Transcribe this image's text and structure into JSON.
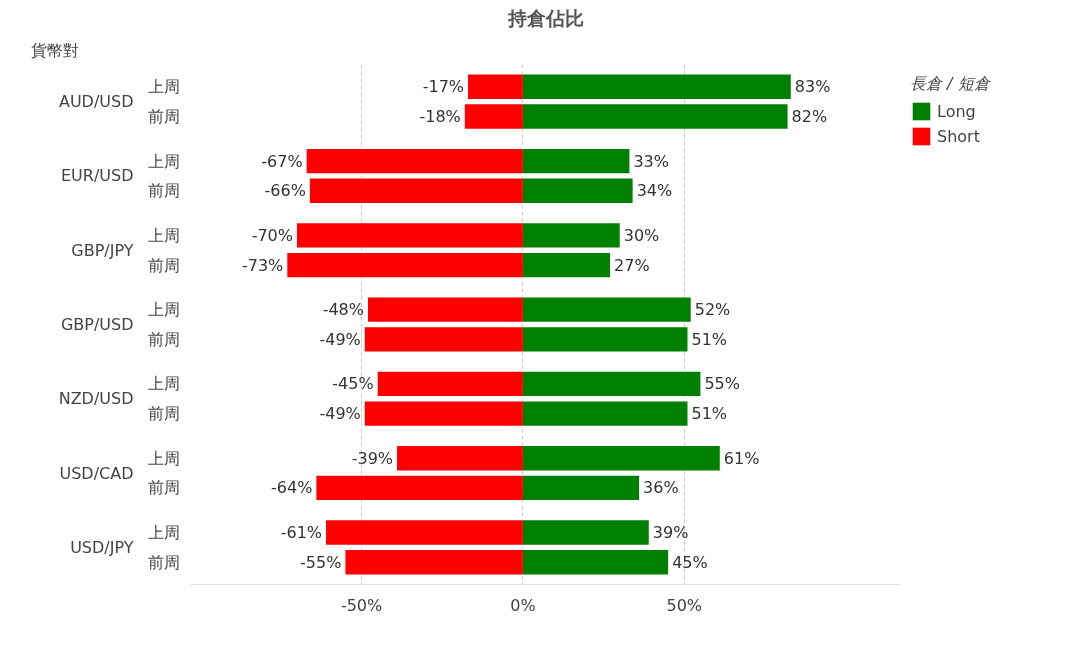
{
  "chart_data": {
    "type": "bar",
    "orientation": "horizontal",
    "stacked": true,
    "title": "持倉佔比",
    "ylabel": "貨幣對",
    "legend_title": "長倉 / 短倉",
    "categories": [
      "上周",
      "前周",
      "上周",
      "前周",
      "上周",
      "前周",
      "上周",
      "前周",
      "上周",
      "前周",
      "上周",
      "前周",
      "上周",
      "前周"
    ],
    "annotations": [
      "AUD/USD",
      "EUR/USD",
      "GBP/JPY",
      "GBP/USD",
      "NZD/USD",
      "USD/CAD",
      "USD/JPY"
    ],
    "series": [
      {
        "name": "Long",
        "color": "#008000",
        "values": [
          83,
          82,
          33,
          34,
          30,
          27,
          52,
          51,
          55,
          51,
          61,
          36,
          39,
          45
        ],
        "value_labels": [
          "83%",
          "82%",
          "33%",
          "34%",
          "30%",
          "27%",
          "52%",
          "51%",
          "55%",
          "51%",
          "61%",
          "36%",
          "39%",
          "45%"
        ]
      },
      {
        "name": "Short",
        "color": "#ff0000",
        "values": [
          -17,
          -18,
          -67,
          -66,
          -70,
          -73,
          -48,
          -49,
          -45,
          -49,
          -39,
          -64,
          -61,
          -55
        ],
        "value_labels": [
          "-17%",
          "-18%",
          "-67%",
          "-66%",
          "-70%",
          "-73%",
          "-48%",
          "-49%",
          "-45%",
          "-49%",
          "-39%",
          "-64%",
          "-61%",
          "-55%"
        ]
      }
    ],
    "xlim": [
      -103,
      117
    ],
    "xticks": [
      {
        "value": -50,
        "label": "-50%"
      },
      {
        "value": 0,
        "label": "0%"
      },
      {
        "value": 50,
        "label": "50%"
      }
    ],
    "grid": "x",
    "legend": "top right"
  }
}
